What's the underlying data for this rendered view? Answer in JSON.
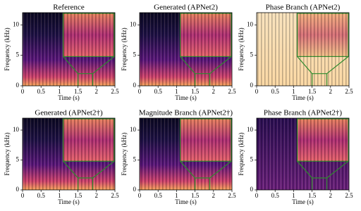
{
  "chart_data": [
    {
      "type": "spectrogram",
      "title": "Reference",
      "xlabel": "Time (s)",
      "ylabel": "Frequency (kHz)",
      "xlim": [
        0,
        2.5
      ],
      "ylim": [
        0,
        12
      ],
      "xticks": [
        0,
        0.5,
        1,
        1.5,
        2,
        2.5
      ],
      "yticks": [
        0,
        5,
        10
      ]
    },
    {
      "type": "spectrogram",
      "title": "Generated (APNet2)",
      "xlabel": "Time (s)",
      "ylabel": "Frequency (kHz)",
      "xlim": [
        0,
        2.5
      ],
      "ylim": [
        0,
        12
      ],
      "xticks": [
        0,
        0.5,
        1,
        1.5,
        2,
        2.5
      ],
      "yticks": [
        0,
        5,
        10
      ]
    },
    {
      "type": "spectrogram",
      "title": "Phase Branch (APNet2)",
      "xlabel": "Time (s)",
      "ylabel": "Frequency (kHz)",
      "xlim": [
        0,
        2.5
      ],
      "ylim": [
        0,
        12
      ],
      "xticks": [
        0,
        0.5,
        1,
        1.5,
        2,
        2.5
      ],
      "yticks": [
        0,
        5,
        10
      ]
    },
    {
      "type": "spectrogram",
      "title": "Generated (APNet2†)",
      "xlabel": "Time (s)",
      "ylabel": "Frequency (kHz)",
      "xlim": [
        0,
        2.5
      ],
      "ylim": [
        0,
        12
      ],
      "xticks": [
        0,
        0.5,
        1,
        1.5,
        2,
        2.5
      ],
      "yticks": [
        0,
        5,
        10
      ]
    },
    {
      "type": "spectrogram",
      "title": "Magnitude Branch (APNet2†)",
      "xlabel": "Time (s)",
      "ylabel": "Frequency (kHz)",
      "xlim": [
        0,
        2.5
      ],
      "ylim": [
        0,
        12
      ],
      "xticks": [
        0,
        0.5,
        1,
        1.5,
        2,
        2.5
      ],
      "yticks": [
        0,
        5,
        10
      ]
    },
    {
      "type": "spectrogram",
      "title": "Phase Branch (APNet2†)",
      "xlabel": "Time (s)",
      "ylabel": "Frequency (kHz)",
      "xlim": [
        0,
        2.5
      ],
      "ylim": [
        0,
        12
      ],
      "xticks": [
        0,
        0.5,
        1,
        1.5,
        2,
        2.5
      ],
      "yticks": [
        0,
        5,
        10
      ]
    }
  ]
}
